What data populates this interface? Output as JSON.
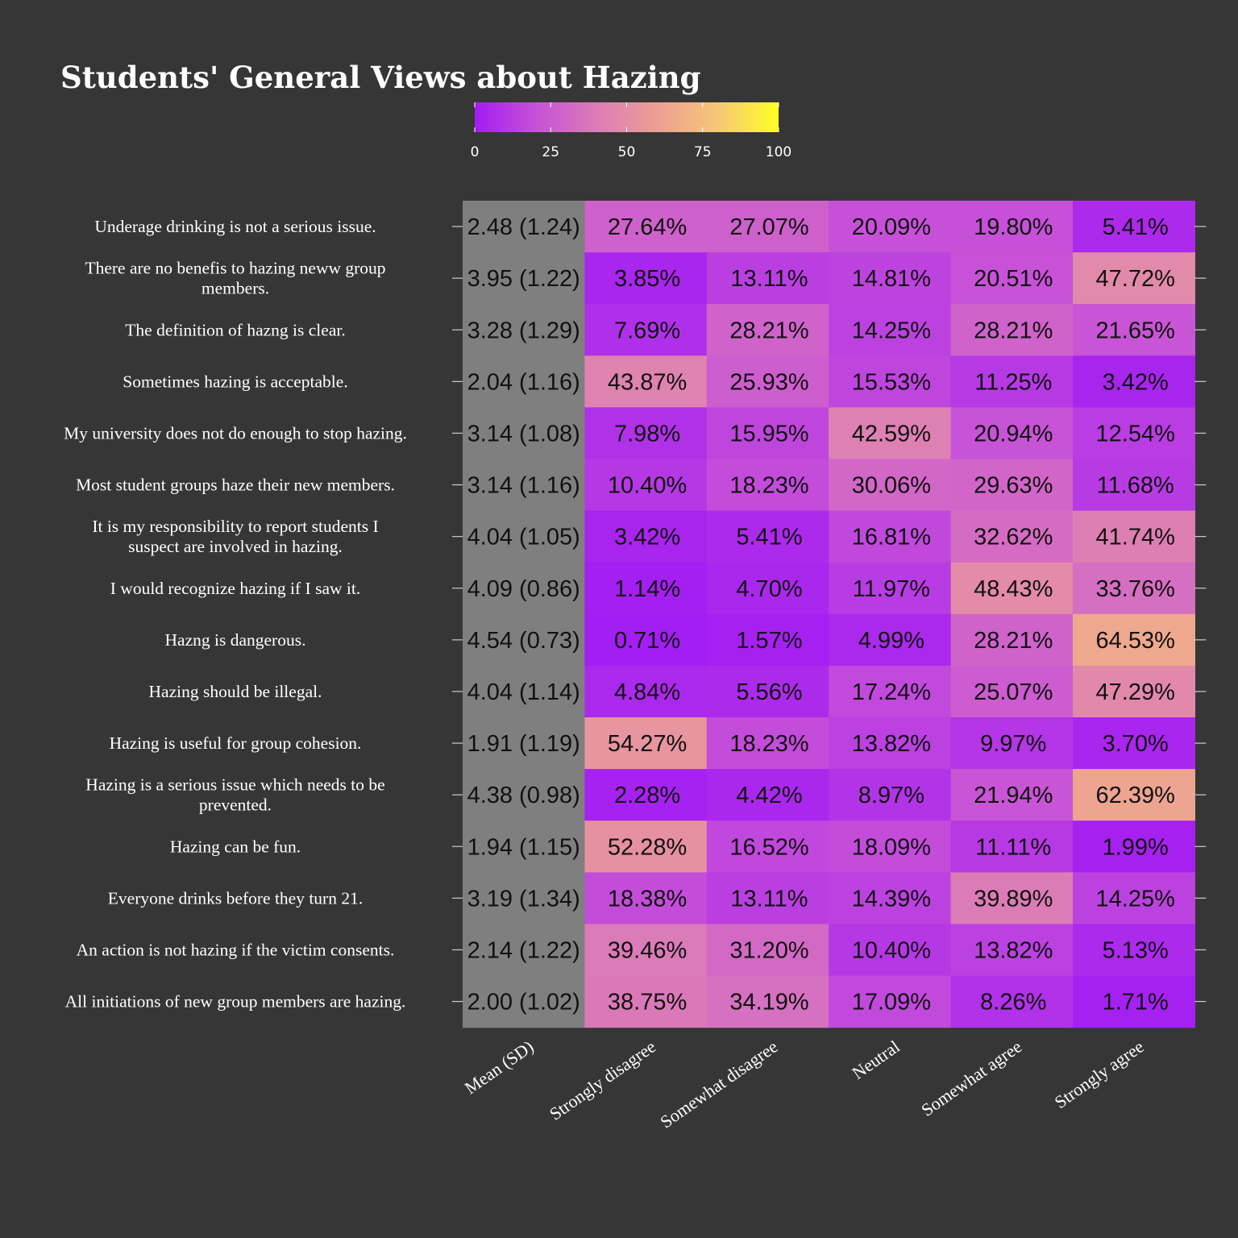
{
  "chart_data": {
    "type": "heatmap",
    "title": "Students' General Views about Hazing",
    "legend": {
      "min": 0,
      "max": 100,
      "ticks": [
        "0",
        "25",
        "50",
        "75",
        "100"
      ],
      "colors": [
        "#a21cf3",
        "#c651d8",
        "#dc7cb6",
        "#ec9f94",
        "#f6c777",
        "#ffff22"
      ]
    },
    "mean_column_color": "#7f7f7f",
    "columns": [
      "Mean (SD)",
      "Strongly disagree",
      "Somewhat disagree",
      "Neutral",
      "Somewhat agree",
      "Strongly agree"
    ],
    "rows": [
      {
        "label": [
          "Underage drinking is not a serious issue."
        ],
        "mean_sd": "2.48 (1.24)",
        "values": [
          27.64,
          27.07,
          20.09,
          19.8,
          5.41
        ],
        "labels": [
          "27.64%",
          "27.07%",
          "20.09%",
          "19.80%",
          "5.41%"
        ]
      },
      {
        "label": [
          "There are no benefis to hazing neww group",
          "members."
        ],
        "mean_sd": "3.95 (1.22)",
        "values": [
          3.85,
          13.11,
          14.81,
          20.51,
          47.72
        ],
        "labels": [
          "3.85%",
          "13.11%",
          "14.81%",
          "20.51%",
          "47.72%"
        ]
      },
      {
        "label": [
          "The definition of hazng is clear."
        ],
        "mean_sd": "3.28 (1.29)",
        "values": [
          7.69,
          28.21,
          14.25,
          28.21,
          21.65
        ],
        "labels": [
          "7.69%",
          "28.21%",
          "14.25%",
          "28.21%",
          "21.65%"
        ]
      },
      {
        "label": [
          "Sometimes hazing is acceptable."
        ],
        "mean_sd": "2.04 (1.16)",
        "values": [
          43.87,
          25.93,
          15.53,
          11.25,
          3.42
        ],
        "labels": [
          "43.87%",
          "25.93%",
          "15.53%",
          "11.25%",
          "3.42%"
        ]
      },
      {
        "label": [
          "My university does not do enough to stop hazing."
        ],
        "mean_sd": "3.14 (1.08)",
        "values": [
          7.98,
          15.95,
          42.59,
          20.94,
          12.54
        ],
        "labels": [
          "7.98%",
          "15.95%",
          "42.59%",
          "20.94%",
          "12.54%"
        ]
      },
      {
        "label": [
          "Most student groups haze their new members."
        ],
        "mean_sd": "3.14 (1.16)",
        "values": [
          10.4,
          18.23,
          30.06,
          29.63,
          11.68
        ],
        "labels": [
          "10.40%",
          "18.23%",
          "30.06%",
          "29.63%",
          "11.68%"
        ]
      },
      {
        "label": [
          "It is my responsibility to report students I",
          "suspect are involved in hazing."
        ],
        "mean_sd": "4.04 (1.05)",
        "values": [
          3.42,
          5.41,
          16.81,
          32.62,
          41.74
        ],
        "labels": [
          "3.42%",
          "5.41%",
          "16.81%",
          "32.62%",
          "41.74%"
        ]
      },
      {
        "label": [
          "I would recognize hazing if I saw it."
        ],
        "mean_sd": "4.09 (0.86)",
        "values": [
          1.14,
          4.7,
          11.97,
          48.43,
          33.76
        ],
        "labels": [
          "1.14%",
          "4.70%",
          "11.97%",
          "48.43%",
          "33.76%"
        ]
      },
      {
        "label": [
          "Hazng is dangerous."
        ],
        "mean_sd": "4.54 (0.73)",
        "values": [
          0.71,
          1.57,
          4.99,
          28.21,
          64.53
        ],
        "labels": [
          "0.71%",
          "1.57%",
          "4.99%",
          "28.21%",
          "64.53%"
        ]
      },
      {
        "label": [
          "Hazing should be illegal."
        ],
        "mean_sd": "4.04 (1.14)",
        "values": [
          4.84,
          5.56,
          17.24,
          25.07,
          47.29
        ],
        "labels": [
          "4.84%",
          "5.56%",
          "17.24%",
          "25.07%",
          "47.29%"
        ]
      },
      {
        "label": [
          "Hazing is useful for group cohesion."
        ],
        "mean_sd": "1.91 (1.19)",
        "values": [
          54.27,
          18.23,
          13.82,
          9.97,
          3.7
        ],
        "labels": [
          "54.27%",
          "18.23%",
          "13.82%",
          "9.97%",
          "3.70%"
        ]
      },
      {
        "label": [
          "Hazing is a serious issue which needs to be",
          "prevented."
        ],
        "mean_sd": "4.38 (0.98)",
        "values": [
          2.28,
          4.42,
          8.97,
          21.94,
          62.39
        ],
        "labels": [
          "2.28%",
          "4.42%",
          "8.97%",
          "21.94%",
          "62.39%"
        ]
      },
      {
        "label": [
          "Hazing can be fun."
        ],
        "mean_sd": "1.94 (1.15)",
        "values": [
          52.28,
          16.52,
          18.09,
          11.11,
          1.99
        ],
        "labels": [
          "52.28%",
          "16.52%",
          "18.09%",
          "11.11%",
          "1.99%"
        ]
      },
      {
        "label": [
          "Everyone drinks before they turn 21."
        ],
        "mean_sd": "3.19 (1.34)",
        "values": [
          18.38,
          13.11,
          14.39,
          39.89,
          14.25
        ],
        "labels": [
          "18.38%",
          "13.11%",
          "14.39%",
          "39.89%",
          "14.25%"
        ]
      },
      {
        "label": [
          "An action is not hazing if the victim consents."
        ],
        "mean_sd": "2.14 (1.22)",
        "values": [
          39.46,
          31.2,
          10.4,
          13.82,
          5.13
        ],
        "labels": [
          "39.46%",
          "31.20%",
          "10.40%",
          "13.82%",
          "5.13%"
        ]
      },
      {
        "label": [
          "All initiations of new group members are hazing."
        ],
        "mean_sd": "2.00 (1.02)",
        "values": [
          38.75,
          34.19,
          17.09,
          8.26,
          1.71
        ],
        "labels": [
          "38.75%",
          "34.19%",
          "17.09%",
          "8.26%",
          "1.71%"
        ]
      }
    ]
  }
}
